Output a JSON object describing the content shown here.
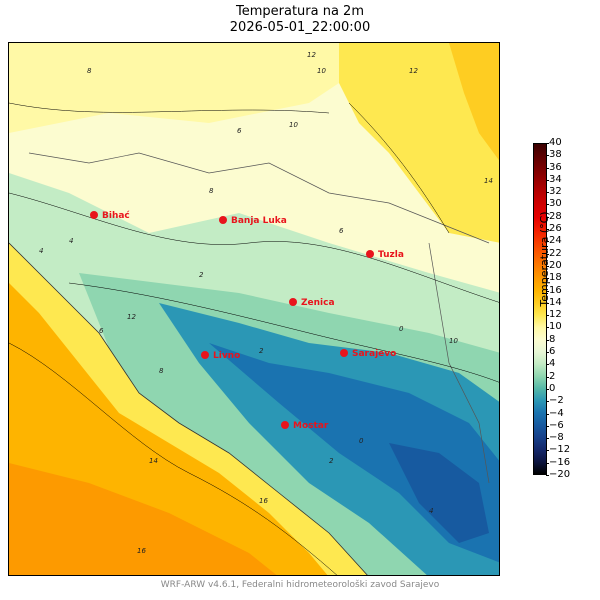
{
  "title": {
    "line1": "Temperatura na 2m",
    "line2": "2026-05-01_22:00:00"
  },
  "colorbar": {
    "label": "Temperatura (°C)",
    "ticks": [
      "40",
      "38",
      "36",
      "34",
      "32",
      "30",
      "28",
      "26",
      "24",
      "22",
      "20",
      "18",
      "16",
      "14",
      "12",
      "10",
      "8",
      "6",
      "4",
      "2",
      "0",
      "−2",
      "−4",
      "−6",
      "−8",
      "−12",
      "−16",
      "−20"
    ],
    "colors": {
      "40": "#3b0000",
      "38": "#5c0000",
      "36": "#7a0000",
      "34": "#990000",
      "32": "#b80000",
      "30": "#d10000",
      "28": "#e60000",
      "26": "#f21c00",
      "24": "#f73c00",
      "22": "#fa5c00",
      "20": "#fc7c00",
      "18": "#fd9a00",
      "16": "#feb400",
      "14": "#fecd22",
      "12": "#fee850",
      "10": "#fff9a6",
      "8": "#fcfcd0",
      "6": "#e8f7d6",
      "4": "#c3ecc5",
      "2": "#8fd6b0",
      "0": "#55b8a8",
      "-2": "#2b97b5",
      "-4": "#1a73b0",
      "-6": "#175aa0",
      "-8": "#17408a",
      "-12": "#14286b",
      "-16": "#0c1440",
      "-20": "#000000"
    }
  },
  "cities": [
    {
      "name": "Bihać"
    },
    {
      "name": "Banja Luka"
    },
    {
      "name": "Tuzla"
    },
    {
      "name": "Zenica"
    },
    {
      "name": "Livno"
    },
    {
      "name": "Sarajevo"
    },
    {
      "name": "Mostar"
    }
  ],
  "contour_labels": [
    "12",
    "10",
    "8",
    "6",
    "4",
    "2",
    "0",
    "14",
    "16",
    "12",
    "10",
    "8",
    "6",
    "4",
    "2",
    "0",
    "14",
    "16",
    "12",
    "10",
    "8",
    "6",
    "4",
    "2"
  ],
  "footer": "WRF-ARW v4.6.1, Federalni hidrometeorološki zavod Sarajevo"
}
